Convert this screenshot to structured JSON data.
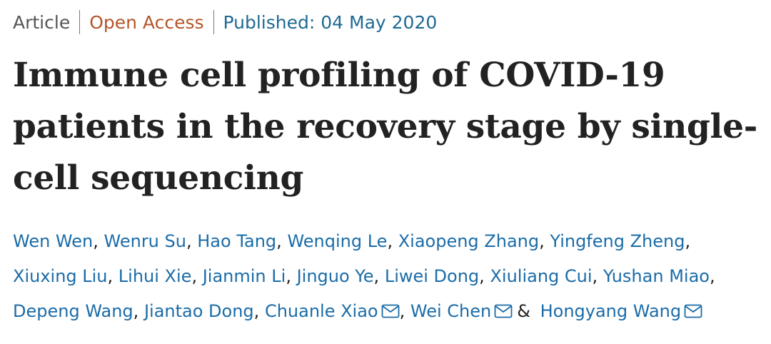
{
  "header": {
    "type": "Article",
    "access": "Open Access",
    "published": "Published: 04 May 2020"
  },
  "title": "Immune cell profiling of COVID-19 patients in the recovery stage by single-cell sequencing",
  "authors": [
    {
      "name": "Wen Wen",
      "after": ","
    },
    {
      "name": "Wenru Su",
      "after": ","
    },
    {
      "name": "Hao Tang",
      "after": ","
    },
    {
      "name": "Wenqing Le",
      "after": ","
    },
    {
      "name": "Xiaopeng Zhang",
      "after": ","
    },
    {
      "name": "Yingfeng Zheng",
      "after": ","
    },
    {
      "name": "Xiuxing Liu",
      "after": ","
    },
    {
      "name": "Lihui Xie",
      "after": ","
    },
    {
      "name": "Jianmin Li",
      "after": ","
    },
    {
      "name": "Jinguo Ye",
      "after": ","
    },
    {
      "name": "Liwei Dong",
      "after": ","
    },
    {
      "name": "Xiuliang Cui",
      "after": ","
    },
    {
      "name": "Yushan Miao",
      "after": ","
    },
    {
      "name": "Depeng Wang",
      "after": ","
    },
    {
      "name": "Jiantao Dong",
      "after": ","
    },
    {
      "name": "Chuanle Xiao",
      "email": true,
      "after": ","
    },
    {
      "name": "Wei Chen",
      "email": true,
      "after": "&"
    },
    {
      "name": "Hongyang Wang",
      "email": true
    }
  ]
}
